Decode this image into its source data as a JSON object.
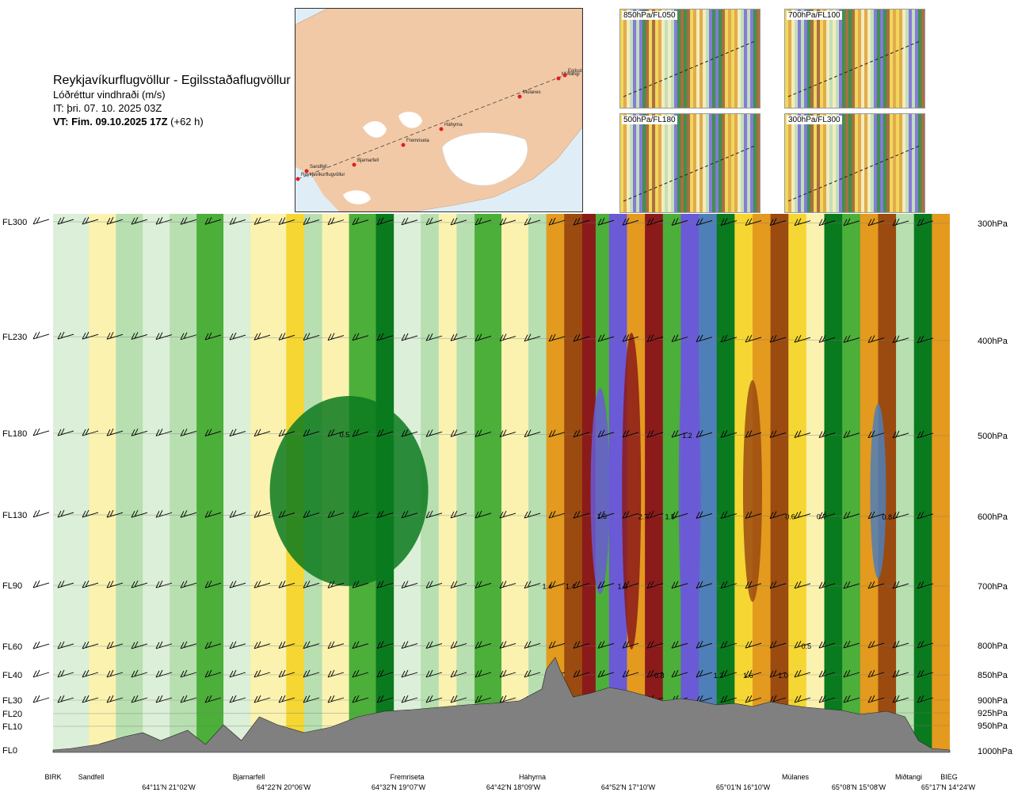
{
  "header": {
    "title": "Reykjavíkurflugvöllur - Egilsstaðaflugvöllur",
    "subtitle": "Lóðréttur vindhraði (m/s)",
    "issue_time": "IT: þri. 07. 10. 2025 03Z",
    "valid_time_bold": "VT: Fim. 09.10.2025 17Z",
    "valid_time_rest": "(+62 h)"
  },
  "map": {
    "route_points": [
      "Reykjavíkurflugvöllur",
      "Sandfell",
      "Bjarnarfell",
      "Fremriseta",
      "Háhyrna",
      "Múlanes",
      "Miðtangi",
      "Egilsstaðaflugvöllur"
    ],
    "map_labels": [
      "Reykjavíkurflugvöllur",
      "Sandfell",
      "Bjarnarfell",
      "Fremriseta",
      "Háhyrna",
      "Múlanes",
      "Miðtangi",
      "Egilsst"
    ]
  },
  "thumbnails": [
    {
      "label": "850hPa/FL050"
    },
    {
      "label": "700hPa/FL100"
    },
    {
      "label": "500hPa/FL180"
    },
    {
      "label": "300hPa/FL300"
    }
  ],
  "colors": {
    "strong_down": "#6a5ad6",
    "mod_down": "#4f7fb8",
    "dark_green": "#0a7a1e",
    "green": "#4caf3a",
    "light_green": "#b8dfb0",
    "pale_green": "#dcefd8",
    "pale_yellow": "#fbf2b0",
    "yellow": "#f5d633",
    "orange": "#e39a1e",
    "brown": "#9b4a10",
    "dark_red": "#8b1a1a",
    "terrain": "#808080"
  },
  "chart_data": {
    "type": "heatmap",
    "title": "Lóðréttur vindhraði (m/s)",
    "flight_levels": [
      "FL300",
      "FL230",
      "FL180",
      "FL130",
      "FL90",
      "FL60",
      "FL40",
      "FL30",
      "FL20",
      "FL10",
      "FL0"
    ],
    "pressure_levels": [
      "300hPa",
      "400hPa",
      "500hPa",
      "600hPa",
      "700hPa",
      "800hPa",
      "850hPa",
      "900hPa",
      "925hPa",
      "950hPa",
      "1000hPa"
    ],
    "locations": [
      "BIRK",
      "Sandfell",
      "Bjarnarfell",
      "Fremriseta",
      "Háhyrna",
      "Múlanes",
      "Miðtangi",
      "BIEG"
    ],
    "coordinates": [
      "64°11'N 21°02'W",
      "64°22'N 20°06'W",
      "64°32'N 19°07'W",
      "64°42'N 18°09'W",
      "64°52'N 17°10'W",
      "65°01'N 16°10'W",
      "65°08'N 15°08'W",
      "65°17'N 14°24'W"
    ],
    "value_labels": [
      {
        "text": "0.5",
        "x_frac": 0.325,
        "level": "FL180"
      },
      {
        "text": "1.2",
        "x_frac": 0.707,
        "level": "FL180"
      },
      {
        "text": "1.6",
        "x_frac": 0.612,
        "level": "FL130"
      },
      {
        "text": "2.7",
        "x_frac": 0.658,
        "level": "FL130"
      },
      {
        "text": "1.5",
        "x_frac": 0.688,
        "level": "FL130"
      },
      {
        "text": "0.6",
        "x_frac": 0.822,
        "level": "FL130"
      },
      {
        "text": "0.7",
        "x_frac": 0.857,
        "level": "FL130"
      },
      {
        "text": "0.8",
        "x_frac": 0.93,
        "level": "FL130"
      },
      {
        "text": "1.4",
        "x_frac": 0.551,
        "level": "FL90"
      },
      {
        "text": "1.4",
        "x_frac": 0.577,
        "level": "FL90"
      },
      {
        "text": "1.6",
        "x_frac": 0.635,
        "level": "FL90"
      },
      {
        "text": "0.5",
        "x_frac": 0.84,
        "level": "FL60"
      },
      {
        "text": "0.8",
        "x_frac": 0.676,
        "level": "FL40"
      },
      {
        "text": "1.2",
        "x_frac": 0.742,
        "level": "FL40"
      },
      {
        "text": "1.6",
        "x_frac": 0.775,
        "level": "FL40"
      },
      {
        "text": "1.0",
        "x_frac": 0.814,
        "level": "FL40"
      }
    ]
  }
}
